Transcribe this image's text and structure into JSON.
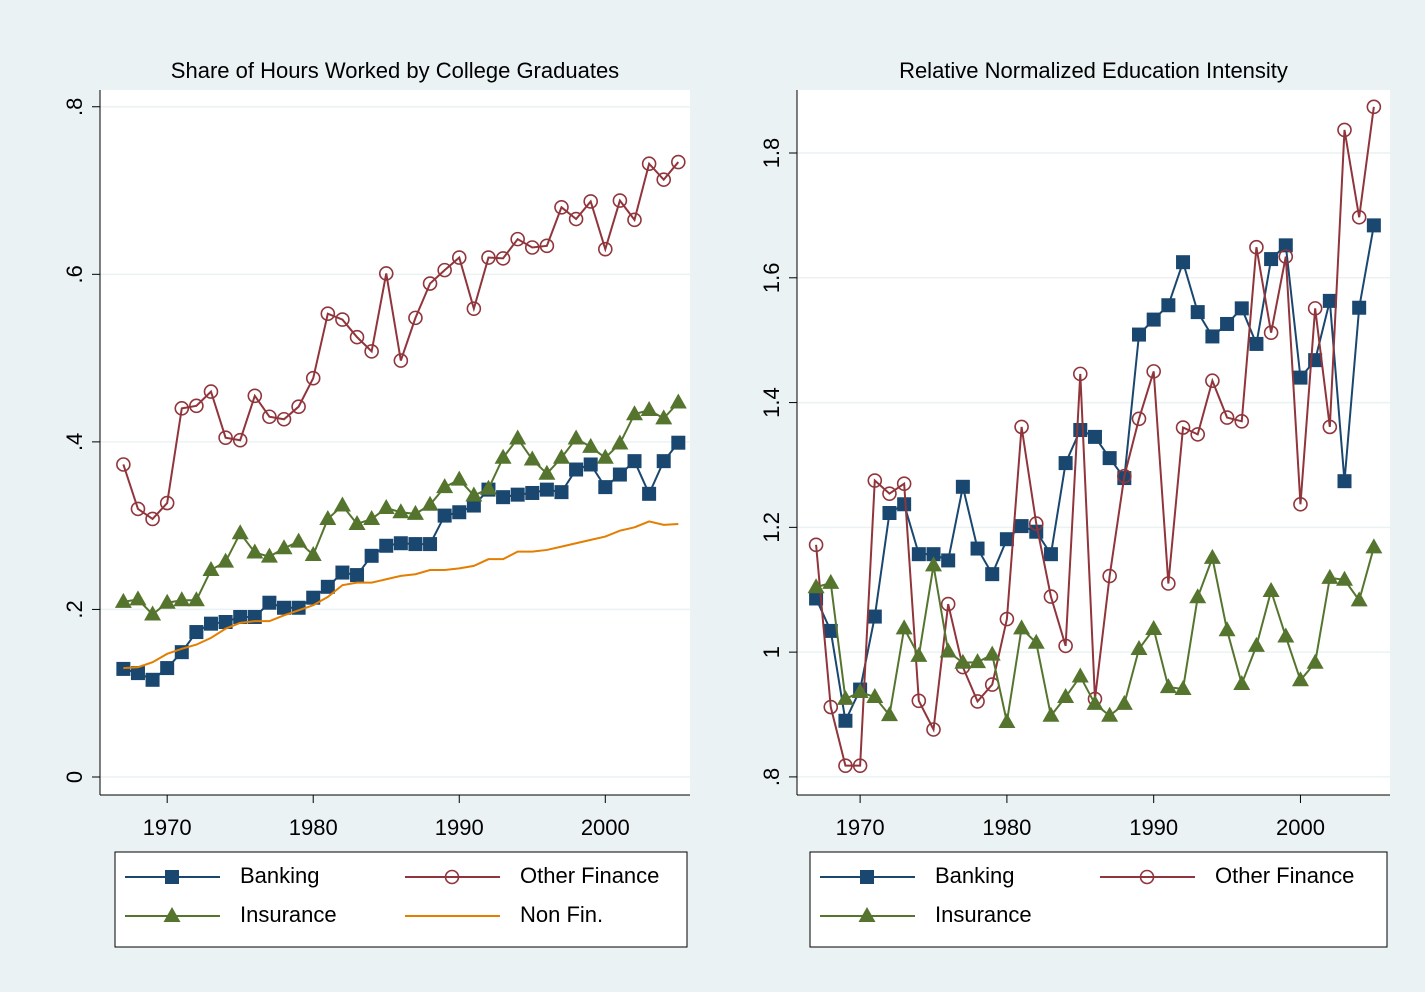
{
  "chart_data": [
    {
      "type": "line",
      "title": "Share of Hours Worked by College Graduates",
      "x": [
        1967,
        1968,
        1969,
        1970,
        1971,
        1972,
        1973,
        1974,
        1975,
        1976,
        1977,
        1978,
        1979,
        1980,
        1981,
        1982,
        1983,
        1984,
        1985,
        1986,
        1987,
        1988,
        1989,
        1990,
        1991,
        1992,
        1993,
        1994,
        1995,
        1996,
        1997,
        1998,
        1999,
        2000,
        2001,
        2002,
        2003,
        2004,
        2005
      ],
      "xlim": [
        1965.4,
        2005.8
      ],
      "xticks": [
        1970,
        1980,
        1990,
        2000
      ],
      "ylim": [
        -0.0215,
        0.82
      ],
      "yticks": [
        0,
        {
          "value": 0.2,
          "label": ".2"
        },
        {
          "value": 0.4,
          "label": ".4"
        },
        {
          "value": 0.6,
          "label": ".6"
        },
        {
          "value": 0.8,
          "label": ".8"
        }
      ],
      "grid": true,
      "series": [
        {
          "name": "Banking",
          "color": "#1a476f",
          "marker": "square",
          "values": [
            0.129,
            0.124,
            0.116,
            0.13,
            0.149,
            0.173,
            0.183,
            0.185,
            0.191,
            0.191,
            0.208,
            0.202,
            0.202,
            0.214,
            0.227,
            0.244,
            0.241,
            0.264,
            0.276,
            0.279,
            0.278,
            0.278,
            0.312,
            0.316,
            0.324,
            0.343,
            0.334,
            0.337,
            0.339,
            0.343,
            0.34,
            0.367,
            0.373,
            0.346,
            0.361,
            0.377,
            0.338,
            0.377,
            0.399
          ]
        },
        {
          "name": "Other Finance",
          "color": "#90353b",
          "marker": "circle",
          "values": [
            0.373,
            0.32,
            0.308,
            0.327,
            0.44,
            0.443,
            0.46,
            0.405,
            0.402,
            0.455,
            0.43,
            0.427,
            0.442,
            0.476,
            0.553,
            0.546,
            0.525,
            0.508,
            0.601,
            0.497,
            0.548,
            0.589,
            0.605,
            0.62,
            0.559,
            0.62,
            0.619,
            0.642,
            0.632,
            0.634,
            0.68,
            0.666,
            0.687,
            0.63,
            0.688,
            0.665,
            0.732,
            0.713,
            0.734
          ]
        },
        {
          "name": "Insurance",
          "color": "#55752f",
          "marker": "triangle",
          "values": [
            0.209,
            0.212,
            0.194,
            0.208,
            0.211,
            0.211,
            0.247,
            0.257,
            0.291,
            0.268,
            0.263,
            0.273,
            0.281,
            0.265,
            0.308,
            0.324,
            0.302,
            0.308,
            0.321,
            0.316,
            0.314,
            0.325,
            0.346,
            0.355,
            0.336,
            0.344,
            0.381,
            0.404,
            0.379,
            0.362,
            0.381,
            0.404,
            0.394,
            0.381,
            0.398,
            0.433,
            0.438,
            0.428,
            0.447
          ]
        },
        {
          "name": "Non Fin.",
          "color": "#e37e00",
          "values": [
            0.13,
            0.131,
            0.137,
            0.147,
            0.153,
            0.158,
            0.166,
            0.177,
            0.184,
            0.186,
            0.186,
            0.193,
            0.199,
            0.205,
            0.215,
            0.229,
            0.232,
            0.232,
            0.236,
            0.24,
            0.242,
            0.247,
            0.247,
            0.249,
            0.252,
            0.26,
            0.26,
            0.269,
            0.269,
            0.271,
            0.275,
            0.279,
            0.283,
            0.287,
            0.294,
            0.298,
            0.305,
            0.301,
            0.302
          ]
        }
      ]
    },
    {
      "type": "line",
      "title": "Relative Normalized Education Intensity",
      "x": [
        1967,
        1968,
        1969,
        1970,
        1971,
        1972,
        1973,
        1974,
        1975,
        1976,
        1977,
        1978,
        1979,
        1980,
        1981,
        1982,
        1983,
        1984,
        1985,
        1986,
        1987,
        1988,
        1989,
        1990,
        1991,
        1992,
        1993,
        1994,
        1995,
        1996,
        1997,
        1998,
        1999,
        2000,
        2001,
        2002,
        2003,
        2004,
        2005
      ],
      "xlim": [
        1965.7,
        2006.1
      ],
      "xticks": [
        1970,
        1980,
        1990,
        2000
      ],
      "ylim": [
        0.771,
        1.901
      ],
      "yticks": [
        {
          "value": 0.8,
          "label": ".8"
        },
        1,
        1.2,
        1.4,
        1.6,
        1.8
      ],
      "grid": true,
      "series": [
        {
          "name": "Banking",
          "color": "#1a476f",
          "marker": "square",
          "values": [
            1.086,
            1.034,
            0.89,
            0.94,
            1.057,
            1.223,
            1.237,
            1.157,
            1.157,
            1.147,
            1.265,
            1.166,
            1.125,
            1.181,
            1.202,
            1.193,
            1.157,
            1.303,
            1.356,
            1.345,
            1.311,
            1.279,
            1.509,
            1.533,
            1.556,
            1.625,
            1.545,
            1.506,
            1.526,
            1.551,
            1.494,
            1.63,
            1.652,
            1.44,
            1.468,
            1.563,
            1.274,
            1.552,
            1.684
          ]
        },
        {
          "name": "Other Finance",
          "color": "#90353b",
          "marker": "circle",
          "values": [
            1.172,
            0.912,
            0.818,
            0.818,
            1.275,
            1.254,
            1.27,
            0.922,
            0.876,
            1.077,
            0.976,
            0.921,
            0.948,
            1.053,
            1.361,
            1.206,
            1.089,
            1.01,
            1.446,
            0.925,
            1.122,
            1.282,
            1.374,
            1.45,
            1.11,
            1.36,
            1.349,
            1.435,
            1.376,
            1.37,
            1.649,
            1.512,
            1.634,
            1.237,
            1.551,
            1.361,
            1.837,
            1.697,
            1.874
          ]
        },
        {
          "name": "Insurance",
          "color": "#55752f",
          "marker": "triangle",
          "values": [
            1.104,
            1.111,
            0.925,
            0.936,
            0.928,
            0.899,
            1.038,
            0.994,
            1.139,
            1.001,
            0.983,
            0.984,
            0.996,
            0.888,
            1.038,
            1.015,
            0.898,
            0.928,
            0.961,
            0.917,
            0.898,
            0.917,
            1.005,
            1.037,
            0.944,
            0.941,
            1.088,
            1.151,
            1.035,
            0.949,
            1.01,
            1.098,
            1.025,
            0.955,
            0.983,
            1.119,
            1.116,
            1.083,
            1.168
          ]
        }
      ]
    }
  ]
}
